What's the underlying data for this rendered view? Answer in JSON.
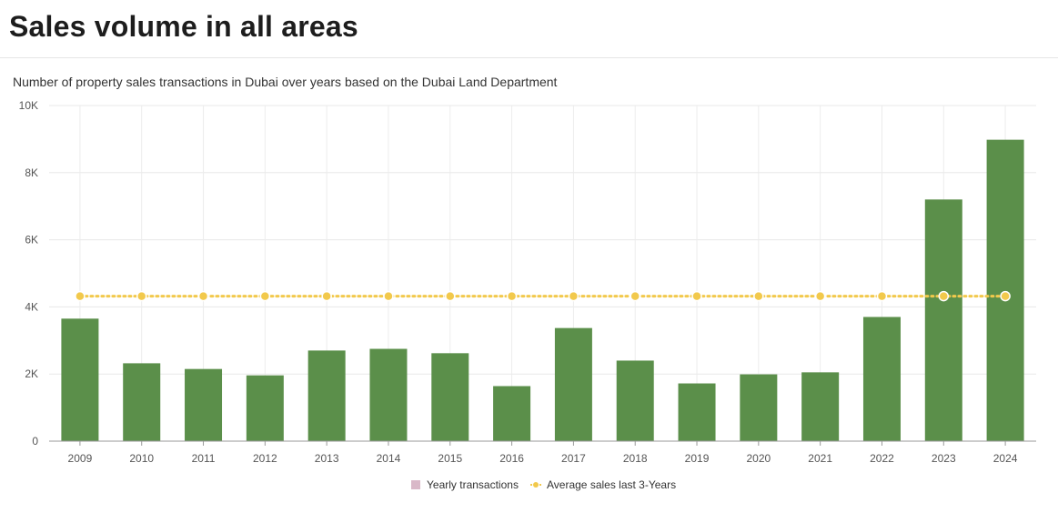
{
  "header": {
    "title": "Sales volume in all areas"
  },
  "chart_data": {
    "type": "bar",
    "title": "Number of property sales transactions in Dubai over years based on the Dubai Land Department",
    "categories": [
      "2009",
      "2010",
      "2011",
      "2012",
      "2013",
      "2014",
      "2015",
      "2016",
      "2017",
      "2018",
      "2019",
      "2020",
      "2021",
      "2022",
      "2023",
      "2024"
    ],
    "series": [
      {
        "name": "Yearly transactions",
        "kind": "bar",
        "color": "#5b8f4a",
        "legend_color": "#d9b8c8",
        "values": [
          3650,
          2320,
          2150,
          1960,
          2700,
          2750,
          2620,
          1640,
          3370,
          2400,
          1720,
          1990,
          2050,
          3700,
          7200,
          8980
        ]
      },
      {
        "name": "Average sales last 3-Years",
        "kind": "line",
        "color": "#f2c94c",
        "values": [
          4320,
          4320,
          4320,
          4320,
          4320,
          4320,
          4320,
          4320,
          4320,
          4320,
          4320,
          4320,
          4320,
          4320,
          4320,
          4320
        ]
      }
    ],
    "ylim": [
      0,
      10000
    ],
    "yticks": [
      0,
      2000,
      4000,
      6000,
      8000,
      10000
    ],
    "ytick_labels": [
      "0",
      "2K",
      "4K",
      "6K",
      "8K",
      "10K"
    ],
    "xlabel": "",
    "ylabel": "",
    "grid": true,
    "legend": "bottom-center"
  }
}
